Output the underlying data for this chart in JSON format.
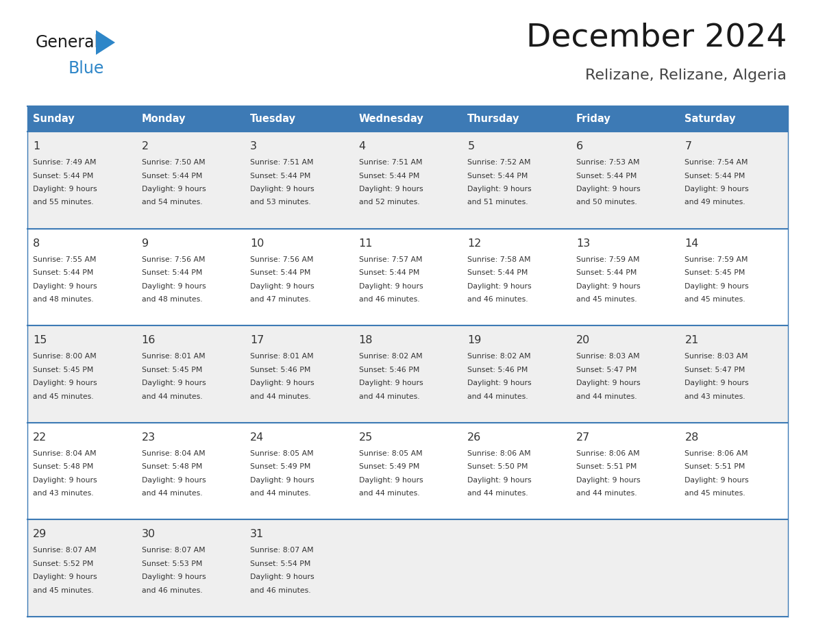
{
  "title": "December 2024",
  "subtitle": "Relizane, Relizane, Algeria",
  "header_color": "#3D7AB5",
  "header_text_color": "#FFFFFF",
  "border_color": "#3D7AB5",
  "text_color": "#333333",
  "days_of_week": [
    "Sunday",
    "Monday",
    "Tuesday",
    "Wednesday",
    "Thursday",
    "Friday",
    "Saturday"
  ],
  "row_bg_colors": [
    "#EFEFEF",
    "#FFFFFF",
    "#EFEFEF",
    "#FFFFFF",
    "#EFEFEF"
  ],
  "weeks": [
    [
      {
        "day": "1",
        "sunrise": "7:49 AM",
        "sunset": "5:44 PM",
        "daylight_line1": "Daylight: 9 hours",
        "daylight_line2": "and 55 minutes."
      },
      {
        "day": "2",
        "sunrise": "7:50 AM",
        "sunset": "5:44 PM",
        "daylight_line1": "Daylight: 9 hours",
        "daylight_line2": "and 54 minutes."
      },
      {
        "day": "3",
        "sunrise": "7:51 AM",
        "sunset": "5:44 PM",
        "daylight_line1": "Daylight: 9 hours",
        "daylight_line2": "and 53 minutes."
      },
      {
        "day": "4",
        "sunrise": "7:51 AM",
        "sunset": "5:44 PM",
        "daylight_line1": "Daylight: 9 hours",
        "daylight_line2": "and 52 minutes."
      },
      {
        "day": "5",
        "sunrise": "7:52 AM",
        "sunset": "5:44 PM",
        "daylight_line1": "Daylight: 9 hours",
        "daylight_line2": "and 51 minutes."
      },
      {
        "day": "6",
        "sunrise": "7:53 AM",
        "sunset": "5:44 PM",
        "daylight_line1": "Daylight: 9 hours",
        "daylight_line2": "and 50 minutes."
      },
      {
        "day": "7",
        "sunrise": "7:54 AM",
        "sunset": "5:44 PM",
        "daylight_line1": "Daylight: 9 hours",
        "daylight_line2": "and 49 minutes."
      }
    ],
    [
      {
        "day": "8",
        "sunrise": "7:55 AM",
        "sunset": "5:44 PM",
        "daylight_line1": "Daylight: 9 hours",
        "daylight_line2": "and 48 minutes."
      },
      {
        "day": "9",
        "sunrise": "7:56 AM",
        "sunset": "5:44 PM",
        "daylight_line1": "Daylight: 9 hours",
        "daylight_line2": "and 48 minutes."
      },
      {
        "day": "10",
        "sunrise": "7:56 AM",
        "sunset": "5:44 PM",
        "daylight_line1": "Daylight: 9 hours",
        "daylight_line2": "and 47 minutes."
      },
      {
        "day": "11",
        "sunrise": "7:57 AM",
        "sunset": "5:44 PM",
        "daylight_line1": "Daylight: 9 hours",
        "daylight_line2": "and 46 minutes."
      },
      {
        "day": "12",
        "sunrise": "7:58 AM",
        "sunset": "5:44 PM",
        "daylight_line1": "Daylight: 9 hours",
        "daylight_line2": "and 46 minutes."
      },
      {
        "day": "13",
        "sunrise": "7:59 AM",
        "sunset": "5:44 PM",
        "daylight_line1": "Daylight: 9 hours",
        "daylight_line2": "and 45 minutes."
      },
      {
        "day": "14",
        "sunrise": "7:59 AM",
        "sunset": "5:45 PM",
        "daylight_line1": "Daylight: 9 hours",
        "daylight_line2": "and 45 minutes."
      }
    ],
    [
      {
        "day": "15",
        "sunrise": "8:00 AM",
        "sunset": "5:45 PM",
        "daylight_line1": "Daylight: 9 hours",
        "daylight_line2": "and 45 minutes."
      },
      {
        "day": "16",
        "sunrise": "8:01 AM",
        "sunset": "5:45 PM",
        "daylight_line1": "Daylight: 9 hours",
        "daylight_line2": "and 44 minutes."
      },
      {
        "day": "17",
        "sunrise": "8:01 AM",
        "sunset": "5:46 PM",
        "daylight_line1": "Daylight: 9 hours",
        "daylight_line2": "and 44 minutes."
      },
      {
        "day": "18",
        "sunrise": "8:02 AM",
        "sunset": "5:46 PM",
        "daylight_line1": "Daylight: 9 hours",
        "daylight_line2": "and 44 minutes."
      },
      {
        "day": "19",
        "sunrise": "8:02 AM",
        "sunset": "5:46 PM",
        "daylight_line1": "Daylight: 9 hours",
        "daylight_line2": "and 44 minutes."
      },
      {
        "day": "20",
        "sunrise": "8:03 AM",
        "sunset": "5:47 PM",
        "daylight_line1": "Daylight: 9 hours",
        "daylight_line2": "and 44 minutes."
      },
      {
        "day": "21",
        "sunrise": "8:03 AM",
        "sunset": "5:47 PM",
        "daylight_line1": "Daylight: 9 hours",
        "daylight_line2": "and 43 minutes."
      }
    ],
    [
      {
        "day": "22",
        "sunrise": "8:04 AM",
        "sunset": "5:48 PM",
        "daylight_line1": "Daylight: 9 hours",
        "daylight_line2": "and 43 minutes."
      },
      {
        "day": "23",
        "sunrise": "8:04 AM",
        "sunset": "5:48 PM",
        "daylight_line1": "Daylight: 9 hours",
        "daylight_line2": "and 44 minutes."
      },
      {
        "day": "24",
        "sunrise": "8:05 AM",
        "sunset": "5:49 PM",
        "daylight_line1": "Daylight: 9 hours",
        "daylight_line2": "and 44 minutes."
      },
      {
        "day": "25",
        "sunrise": "8:05 AM",
        "sunset": "5:49 PM",
        "daylight_line1": "Daylight: 9 hours",
        "daylight_line2": "and 44 minutes."
      },
      {
        "day": "26",
        "sunrise": "8:06 AM",
        "sunset": "5:50 PM",
        "daylight_line1": "Daylight: 9 hours",
        "daylight_line2": "and 44 minutes."
      },
      {
        "day": "27",
        "sunrise": "8:06 AM",
        "sunset": "5:51 PM",
        "daylight_line1": "Daylight: 9 hours",
        "daylight_line2": "and 44 minutes."
      },
      {
        "day": "28",
        "sunrise": "8:06 AM",
        "sunset": "5:51 PM",
        "daylight_line1": "Daylight: 9 hours",
        "daylight_line2": "and 45 minutes."
      }
    ],
    [
      {
        "day": "29",
        "sunrise": "8:07 AM",
        "sunset": "5:52 PM",
        "daylight_line1": "Daylight: 9 hours",
        "daylight_line2": "and 45 minutes."
      },
      {
        "day": "30",
        "sunrise": "8:07 AM",
        "sunset": "5:53 PM",
        "daylight_line1": "Daylight: 9 hours",
        "daylight_line2": "and 46 minutes."
      },
      {
        "day": "31",
        "sunrise": "8:07 AM",
        "sunset": "5:54 PM",
        "daylight_line1": "Daylight: 9 hours",
        "daylight_line2": "and 46 minutes."
      },
      null,
      null,
      null,
      null
    ]
  ],
  "logo_general_color": "#1a1a1a",
  "logo_blue_color": "#2E86C8",
  "logo_triangle_color": "#2E86C8",
  "title_color": "#1a1a1a",
  "subtitle_color": "#444444"
}
